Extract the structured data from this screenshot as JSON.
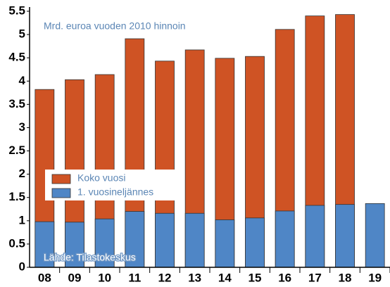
{
  "chart_data": {
    "type": "overlap-bar",
    "annotations": [
      "Mrd. euroa vuoden 2010 hinnoin",
      "Lähde: Tilastokeskus"
    ],
    "categories": [
      "08",
      "09",
      "10",
      "11",
      "12",
      "13",
      "14",
      "15",
      "16",
      "17",
      "18",
      "19"
    ],
    "series": [
      {
        "name": "Koko vuosi",
        "color": "#cf5324",
        "values": [
          3.82,
          4.03,
          4.14,
          4.91,
          4.43,
          4.67,
          4.49,
          4.53,
          5.11,
          5.4,
          5.43,
          null
        ]
      },
      {
        "name": "1. vuosineljännes",
        "color": "#4f86c6",
        "values": [
          0.98,
          0.97,
          1.04,
          1.2,
          1.16,
          1.16,
          1.02,
          1.06,
          1.21,
          1.33,
          1.35,
          1.37
        ]
      }
    ],
    "ylim": [
      0,
      5.5
    ],
    "yticks": [
      0,
      0.5,
      1,
      1.5,
      2,
      2.5,
      3,
      3.5,
      4,
      4.5,
      5,
      5.5
    ],
    "legend": "middle-left"
  }
}
